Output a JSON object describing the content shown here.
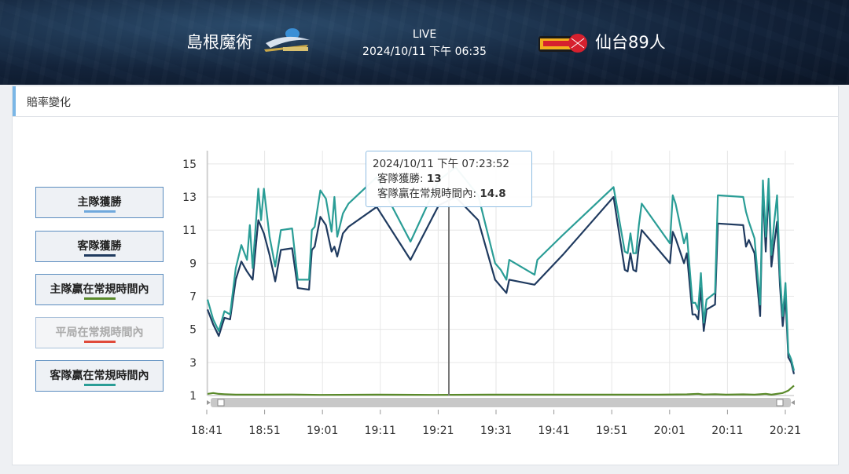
{
  "header": {
    "home_team": "島根魔術",
    "away_team": "仙台89人",
    "status": "LIVE",
    "datetime": "2024/10/11 下午 06:35",
    "home_logo_icon": "susanoo-magic-logo",
    "away_logo_icon": "89ers-logo"
  },
  "panel": {
    "title": "賠率變化"
  },
  "legend": [
    {
      "label": "主隊獲勝",
      "color": "#6fa8dc",
      "active": true
    },
    {
      "label": "客隊獲勝",
      "color": "#1f3a5f",
      "active": true
    },
    {
      "label": "主隊贏在常規時間內",
      "color": "#5a8a2a",
      "active": true
    },
    {
      "label": "平局在常規時間內",
      "color": "#e04a3a",
      "active": false
    },
    {
      "label": "客隊贏在常規時間內",
      "color": "#2a9d96",
      "active": true
    }
  ],
  "tooltip": {
    "time": "2024/10/11 下午 07:23:52",
    "line1_label": "客隊獲勝: ",
    "line1_value": "13",
    "line2_label": "客隊贏在常規時間內: ",
    "line2_value": "14.8"
  },
  "chart_data": {
    "type": "line",
    "x_ticks": [
      "18:41",
      "18:51",
      "19:01",
      "19:11",
      "19:21",
      "19:31",
      "19:41",
      "19:51",
      "20:01",
      "20:11",
      "20:21"
    ],
    "y_ticks": [
      1,
      3,
      5,
      7,
      9,
      11,
      13,
      15
    ],
    "ylim": [
      1,
      15.5
    ],
    "xlim": [
      0,
      102
    ],
    "cursor_x": 42.5,
    "grid": true,
    "series": [
      {
        "name": "客隊獲勝",
        "color": "#1f3a5f",
        "points": [
          [
            0,
            6.2
          ],
          [
            1,
            5.3
          ],
          [
            2,
            4.6
          ],
          [
            3,
            5.7
          ],
          [
            4,
            5.6
          ],
          [
            5,
            8
          ],
          [
            6,
            9.1
          ],
          [
            7,
            8.5
          ],
          [
            8,
            8
          ],
          [
            9,
            11.6
          ],
          [
            10,
            10.8
          ],
          [
            11,
            9.5
          ],
          [
            12,
            7.9
          ],
          [
            13,
            9.8
          ],
          [
            15,
            9.9
          ],
          [
            16,
            7.5
          ],
          [
            18,
            7.4
          ],
          [
            18.5,
            9.8
          ],
          [
            19,
            10
          ],
          [
            20,
            11.8
          ],
          [
            21,
            11.3
          ],
          [
            22,
            9.7
          ],
          [
            22.5,
            10
          ],
          [
            23,
            9.4
          ],
          [
            24,
            10.8
          ],
          [
            25,
            11.2
          ],
          [
            30,
            12.4
          ],
          [
            36,
            9.2
          ],
          [
            41,
            12.5
          ],
          [
            44,
            13
          ],
          [
            48,
            11.6
          ],
          [
            51,
            8.0
          ],
          [
            52,
            7.6
          ],
          [
            53,
            7.2
          ],
          [
            53.5,
            8.0
          ],
          [
            58,
            7.7
          ],
          [
            63,
            9.5
          ],
          [
            72,
            13.0
          ],
          [
            74,
            8.6
          ],
          [
            74.5,
            8.5
          ],
          [
            75,
            9.6
          ],
          [
            75.5,
            8.6
          ],
          [
            76,
            8.5
          ],
          [
            76.5,
            10
          ],
          [
            77,
            11.0
          ],
          [
            82,
            9.0
          ],
          [
            82.5,
            10.9
          ],
          [
            83,
            10.5
          ],
          [
            84.5,
            9.0
          ],
          [
            85,
            9.6
          ],
          [
            86,
            5.9
          ],
          [
            86.5,
            5.9
          ],
          [
            87,
            5.6
          ],
          [
            87.5,
            7.5
          ],
          [
            88,
            4.9
          ],
          [
            88.5,
            6.2
          ],
          [
            90,
            6.5
          ],
          [
            90.5,
            11.4
          ],
          [
            95,
            11.3
          ],
          [
            95.5,
            10.0
          ],
          [
            96,
            10.4
          ],
          [
            97,
            9.6
          ],
          [
            98,
            5.8
          ],
          [
            98.5,
            13.5
          ],
          [
            99,
            9.7
          ],
          [
            99.5,
            13.5
          ],
          [
            100,
            8.8
          ],
          [
            100.5,
            10.2
          ],
          [
            101,
            11.5
          ],
          [
            101.5,
            7.7
          ],
          [
            102,
            5.2
          ],
          [
            102.5,
            7.0
          ],
          [
            103,
            3.3
          ],
          [
            103.5,
            3.0
          ],
          [
            104,
            2.3
          ]
        ]
      },
      {
        "name": "客隊贏在常規時間內",
        "color": "#2a9d96",
        "points": [
          [
            0,
            6.8
          ],
          [
            1,
            5.6
          ],
          [
            2,
            4.9
          ],
          [
            3,
            6.1
          ],
          [
            4,
            5.9
          ],
          [
            5,
            8.7
          ],
          [
            6,
            10.1
          ],
          [
            7,
            9.2
          ],
          [
            7.5,
            11.3
          ],
          [
            8,
            8.7
          ],
          [
            9,
            13.5
          ],
          [
            9.5,
            11.6
          ],
          [
            10,
            13.5
          ],
          [
            11,
            10.6
          ],
          [
            12,
            8.8
          ],
          [
            13,
            11.0
          ],
          [
            15,
            11.1
          ],
          [
            16,
            8.0
          ],
          [
            18,
            8.0
          ],
          [
            18.5,
            11.0
          ],
          [
            19,
            11.2
          ],
          [
            20,
            13.4
          ],
          [
            21,
            12.9
          ],
          [
            22,
            10.9
          ],
          [
            22.5,
            13.0
          ],
          [
            23,
            10.6
          ],
          [
            24,
            12.0
          ],
          [
            25,
            12.6
          ],
          [
            30,
            14.2
          ],
          [
            36,
            10.3
          ],
          [
            41,
            14.0
          ],
          [
            44,
            14.8
          ],
          [
            48,
            13.1
          ],
          [
            51,
            9.0
          ],
          [
            52,
            8.6
          ],
          [
            53,
            8.0
          ],
          [
            53.5,
            9.2
          ],
          [
            58,
            8.3
          ],
          [
            58.5,
            9.2
          ],
          [
            63,
            10.7
          ],
          [
            72,
            13.6
          ],
          [
            74,
            9.7
          ],
          [
            74.5,
            9.6
          ],
          [
            75,
            10.8
          ],
          [
            75.5,
            9.6
          ],
          [
            76,
            9.6
          ],
          [
            76.5,
            11.3
          ],
          [
            77,
            12.6
          ],
          [
            82,
            10.2
          ],
          [
            82.5,
            13.1
          ],
          [
            83,
            12.6
          ],
          [
            84.5,
            10.2
          ],
          [
            85,
            10.8
          ],
          [
            86,
            6.6
          ],
          [
            86.5,
            6.6
          ],
          [
            87,
            6.2
          ],
          [
            87.5,
            8.4
          ],
          [
            88,
            5.4
          ],
          [
            88.5,
            6.8
          ],
          [
            90,
            7.2
          ],
          [
            90.5,
            13.1
          ],
          [
            95,
            13.0
          ],
          [
            95.5,
            12.1
          ],
          [
            96,
            11.5
          ],
          [
            97,
            10.5
          ],
          [
            98,
            6.5
          ],
          [
            98.5,
            14.0
          ],
          [
            99,
            10.6
          ],
          [
            99.5,
            14.1
          ],
          [
            100,
            9.5
          ],
          [
            100.5,
            11.5
          ],
          [
            101,
            13.1
          ],
          [
            101.5,
            8.3
          ],
          [
            102,
            5.8
          ],
          [
            102.5,
            7.8
          ],
          [
            103,
            3.6
          ],
          [
            103.5,
            3.2
          ],
          [
            104,
            2.5
          ]
        ]
      },
      {
        "name": "主隊贏在常規時間內",
        "color": "#5a8a2a",
        "points": [
          [
            0,
            1.1
          ],
          [
            1,
            1.15
          ],
          [
            2,
            1.1
          ],
          [
            3,
            1.08
          ],
          [
            5,
            1.05
          ],
          [
            10,
            1.05
          ],
          [
            15,
            1.06
          ],
          [
            20,
            1.04
          ],
          [
            30,
            1.05
          ],
          [
            40,
            1.04
          ],
          [
            50,
            1.05
          ],
          [
            60,
            1.05
          ],
          [
            70,
            1.05
          ],
          [
            80,
            1.05
          ],
          [
            85,
            1.07
          ],
          [
            87,
            1.1
          ],
          [
            88,
            1.06
          ],
          [
            90,
            1.08
          ],
          [
            92,
            1.05
          ],
          [
            95,
            1.07
          ],
          [
            97,
            1.05
          ],
          [
            99,
            1.1
          ],
          [
            100,
            1.05
          ],
          [
            101,
            1.1
          ],
          [
            102,
            1.15
          ],
          [
            103,
            1.3
          ],
          [
            104,
            1.6
          ]
        ]
      }
    ]
  }
}
